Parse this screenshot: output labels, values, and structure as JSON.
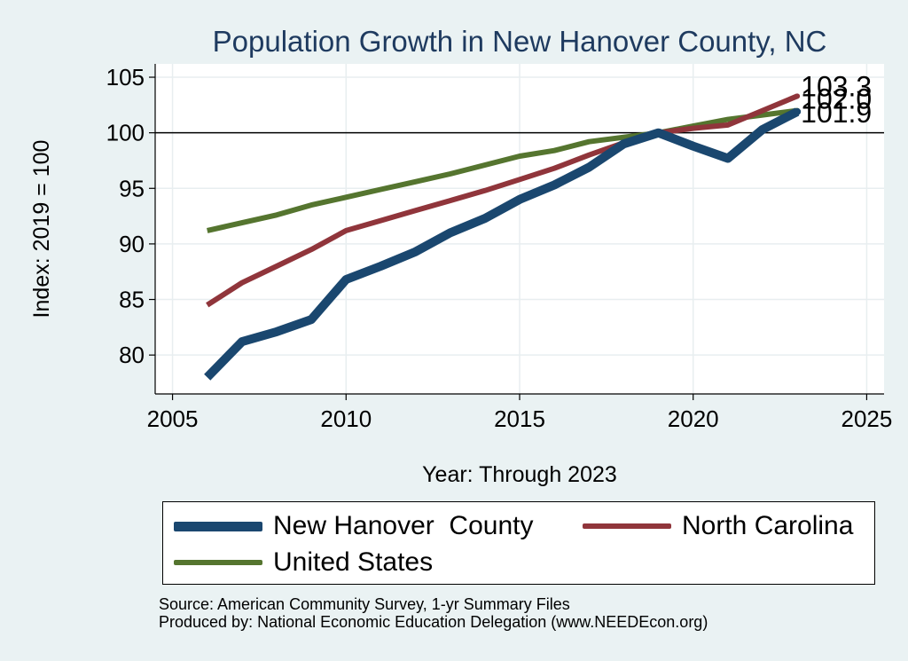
{
  "chart_data": {
    "type": "line",
    "title": "Population Growth in New Hanover County, NC",
    "xlabel": "Year: Through 2023",
    "ylabel": "Index: 2019 = 100",
    "xlim": [
      2004.5,
      2025.5
    ],
    "ylim": [
      76.5,
      106.2
    ],
    "xticks": [
      2005,
      2010,
      2015,
      2020,
      2025
    ],
    "yticks": [
      80,
      85,
      90,
      95,
      100,
      105
    ],
    "reference_line": 100,
    "grid": true,
    "legend_position": "bottom",
    "series": [
      {
        "name": "New Hanover  County",
        "color": "#1a476f",
        "x": [
          2006,
          2007,
          2008,
          2009,
          2010,
          2011,
          2012,
          2013,
          2014,
          2015,
          2016,
          2017,
          2018,
          2019,
          2020,
          2021,
          2022,
          2023
        ],
        "values": [
          78.0,
          81.2,
          82.1,
          83.2,
          86.8,
          88.0,
          89.3,
          91.0,
          92.3,
          94.0,
          95.3,
          96.9,
          99.0,
          100.0,
          98.8,
          97.7,
          100.3,
          101.9
        ],
        "end_label": "101.9"
      },
      {
        "name": "North Carolina",
        "color": "#90353b",
        "x": [
          2006,
          2007,
          2008,
          2009,
          2010,
          2011,
          2012,
          2013,
          2014,
          2015,
          2016,
          2017,
          2018,
          2019,
          2020,
          2021,
          2022,
          2023
        ],
        "values": [
          84.5,
          86.5,
          88.0,
          89.5,
          91.2,
          92.1,
          93.0,
          93.9,
          94.8,
          95.8,
          96.8,
          98.0,
          99.1,
          100.0,
          100.4,
          100.7,
          102.0,
          103.3
        ],
        "end_label": "103.3"
      },
      {
        "name": "United States",
        "color": "#55752f",
        "x": [
          2006,
          2007,
          2008,
          2009,
          2010,
          2011,
          2012,
          2013,
          2014,
          2015,
          2016,
          2017,
          2018,
          2019,
          2020,
          2021,
          2022,
          2023
        ],
        "values": [
          91.2,
          91.9,
          92.6,
          93.5,
          94.2,
          94.9,
          95.6,
          96.3,
          97.1,
          97.9,
          98.4,
          99.2,
          99.6,
          100.0,
          100.6,
          101.2,
          101.6,
          102.0
        ],
        "end_label": "102.0"
      }
    ]
  },
  "source_line1": "Source: American Community Survey, 1-yr Summary Files",
  "source_line2": "Produced by: National Economic Education Delegation (www.NEEDEcon.org)"
}
